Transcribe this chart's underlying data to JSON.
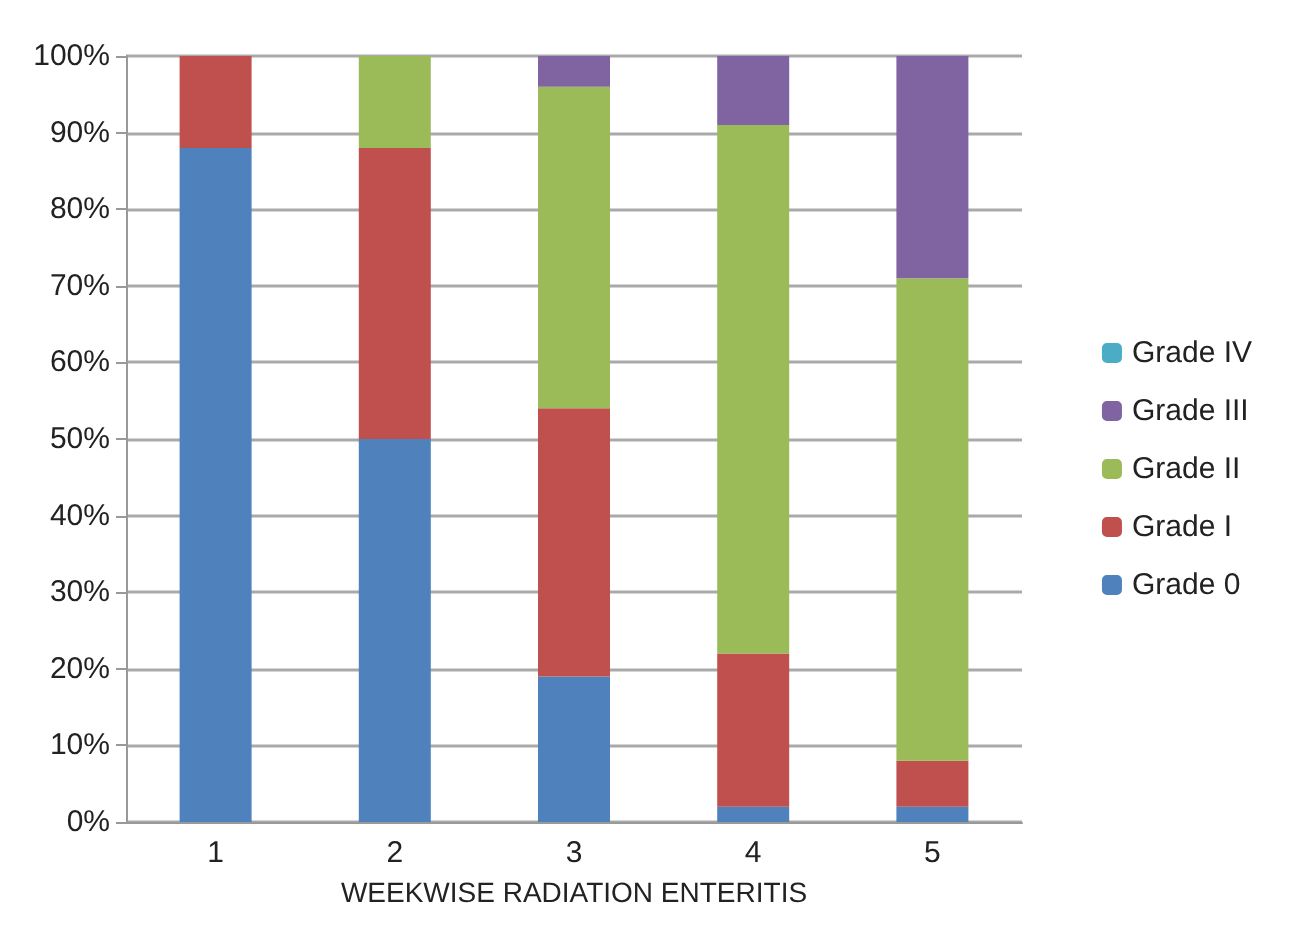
{
  "chart_data": {
    "type": "bar",
    "stacked": true,
    "xlabel": "WEEKWISE RADIATION ENTERITIS",
    "categories": [
      "1",
      "2",
      "3",
      "4",
      "5"
    ],
    "series": [
      {
        "name": "Grade 0",
        "color": "#4f81bd",
        "values": [
          88,
          50,
          19,
          2,
          2
        ]
      },
      {
        "name": "Grade I",
        "color": "#c0504d",
        "values": [
          12,
          38,
          35,
          20,
          6
        ]
      },
      {
        "name": "Grade II",
        "color": "#9bbb59",
        "values": [
          0,
          12,
          42,
          69,
          63
        ]
      },
      {
        "name": "Grade III",
        "color": "#8064a2",
        "values": [
          0,
          0,
          4,
          9,
          29
        ]
      },
      {
        "name": "Grade IV",
        "color": "#4bacc6",
        "values": [
          0,
          0,
          0,
          0,
          0
        ]
      }
    ],
    "ylim": [
      0,
      100
    ],
    "yticks": [
      {
        "value": 0,
        "label": "0%"
      },
      {
        "value": 10,
        "label": "10%"
      },
      {
        "value": 20,
        "label": "20%"
      },
      {
        "value": 30,
        "label": "30%"
      },
      {
        "value": 40,
        "label": "40%"
      },
      {
        "value": 50,
        "label": "50%"
      },
      {
        "value": 60,
        "label": "60%"
      },
      {
        "value": 70,
        "label": "70%"
      },
      {
        "value": 80,
        "label": "80%"
      },
      {
        "value": 90,
        "label": "90%"
      },
      {
        "value": 100,
        "label": "100%"
      }
    ],
    "grid": "y",
    "legend": "right"
  }
}
